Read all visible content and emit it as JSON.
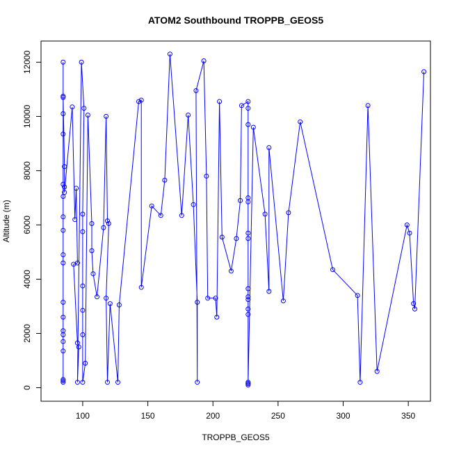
{
  "chart_data": {
    "type": "line",
    "title": "ATOM2 Southbound TROPPB_GEOS5",
    "xlabel": "TROPPB_GEOS5",
    "ylabel": "Altitude (m)",
    "xlim": [
      68,
      367
    ],
    "ylim": [
      -500,
      12780
    ],
    "xticks": [
      100,
      150,
      200,
      250,
      300,
      350
    ],
    "yticks": [
      0,
      2000,
      4000,
      6000,
      8000,
      10000,
      12000
    ],
    "grid": false,
    "legend": "none",
    "series_color": "#0000ff",
    "markers": "open-circle",
    "series": [
      {
        "points": [
          [
            85,
            12000
          ],
          [
            85,
            10700
          ],
          [
            85,
            10100
          ],
          [
            85,
            9350
          ],
          [
            85,
            7500
          ],
          [
            85,
            7050
          ],
          [
            85,
            6300
          ],
          [
            85,
            5800
          ],
          [
            85,
            4900
          ],
          [
            85,
            4600
          ],
          [
            85,
            3150
          ],
          [
            85,
            2600
          ],
          [
            85,
            2100
          ],
          [
            85,
            1950
          ],
          [
            85,
            1700
          ],
          [
            85,
            1350
          ],
          [
            85,
            300
          ],
          [
            85,
            250
          ],
          [
            85,
            200
          ],
          [
            85,
            10750
          ],
          [
            86,
            8150
          ],
          [
            86,
            7400
          ],
          [
            86,
            7200
          ],
          [
            92,
            10350
          ],
          [
            94,
            6200
          ],
          [
            95,
            7350
          ],
          [
            96,
            4600
          ],
          [
            93,
            4550
          ],
          [
            96,
            1650
          ],
          [
            97,
            1500
          ],
          [
            96,
            200
          ],
          [
            99,
            12000
          ],
          [
            101,
            10300
          ],
          [
            100,
            6400
          ],
          [
            100,
            5750
          ],
          [
            100,
            3750
          ],
          [
            100,
            2850
          ],
          [
            100,
            1950
          ],
          [
            100,
            200
          ],
          [
            102,
            900
          ],
          [
            104,
            10050
          ],
          [
            107,
            6050
          ],
          [
            107,
            5050
          ],
          [
            108,
            4200
          ],
          [
            111,
            3350
          ],
          [
            116,
            5900
          ],
          [
            118,
            10000
          ],
          [
            119,
            6150
          ],
          [
            120,
            6050
          ],
          [
            118,
            3300
          ],
          [
            119,
            200
          ],
          [
            121,
            3100
          ],
          [
            127,
            200
          ],
          [
            128,
            3050
          ],
          [
            143,
            10550
          ],
          [
            145,
            10600
          ],
          [
            145,
            3700
          ],
          [
            153,
            6700
          ],
          [
            160,
            6350
          ],
          [
            163,
            7650
          ],
          [
            167,
            12300
          ],
          [
            176,
            6350
          ],
          [
            181,
            10050
          ],
          [
            185,
            6750
          ],
          [
            188,
            3150
          ],
          [
            188,
            200
          ],
          [
            187,
            10950
          ],
          [
            193,
            12050
          ],
          [
            195,
            7800
          ],
          [
            196,
            3300
          ],
          [
            202,
            3300
          ],
          [
            203,
            2600
          ],
          [
            205,
            10550
          ],
          [
            207,
            5550
          ],
          [
            214,
            4300
          ],
          [
            218,
            5500
          ],
          [
            221,
            6900
          ],
          [
            222,
            10400
          ],
          [
            227,
            10550
          ],
          [
            227,
            10300
          ],
          [
            227,
            9700
          ],
          [
            227,
            7000
          ],
          [
            227,
            6850
          ],
          [
            227,
            5700
          ],
          [
            227,
            5500
          ],
          [
            227,
            3650
          ],
          [
            227,
            3350
          ],
          [
            227,
            3250
          ],
          [
            227,
            2900
          ],
          [
            227,
            2700
          ],
          [
            227,
            200
          ],
          [
            227,
            150
          ],
          [
            227,
            100
          ],
          [
            227,
            150
          ],
          [
            231,
            9600
          ],
          [
            240,
            6400
          ],
          [
            243,
            3550
          ],
          [
            243,
            8850
          ],
          [
            254,
            3200
          ],
          [
            258,
            6450
          ],
          [
            267,
            9800
          ],
          [
            292,
            4350
          ],
          [
            311,
            3400
          ],
          [
            313,
            200
          ],
          [
            319,
            10400
          ],
          [
            326,
            600
          ],
          [
            349,
            6000
          ],
          [
            351,
            5700
          ],
          [
            354,
            3100
          ],
          [
            355,
            2900
          ],
          [
            362,
            11650
          ]
        ]
      }
    ]
  }
}
